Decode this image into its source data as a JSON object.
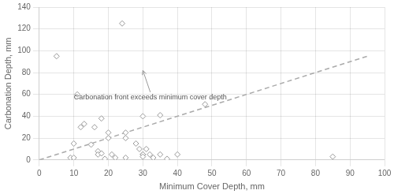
{
  "chart_data": {
    "type": "scatter",
    "xlabel": "Minimum Cover Depth, mm",
    "ylabel": "Carbonation Depth, mm",
    "xlim": [
      0,
      100
    ],
    "ylim": [
      0,
      140
    ],
    "xticks": [
      0,
      10,
      20,
      30,
      40,
      50,
      60,
      70,
      80,
      90,
      100
    ],
    "yticks": [
      0,
      20,
      40,
      60,
      80,
      100,
      120,
      140
    ],
    "grid": true,
    "series": [
      {
        "type": "line",
        "line_style": "dashed",
        "color": "#aaaaaa",
        "x": [
          0,
          95
        ],
        "values": [
          0,
          95
        ]
      },
      {
        "type": "scatter",
        "marker": "diamond",
        "color": "#999999",
        "x": [
          5,
          9,
          10,
          10,
          11,
          12,
          13,
          15,
          16,
          17,
          17,
          18,
          18,
          19,
          20,
          20,
          21,
          22,
          24,
          25,
          25,
          25,
          28,
          29,
          30,
          30,
          30,
          30,
          31,
          32,
          33,
          35,
          35,
          37,
          40,
          48,
          85
        ],
        "values": [
          95,
          2,
          15,
          2,
          60,
          30,
          33,
          14,
          30,
          8,
          5,
          38,
          6,
          1,
          25,
          20,
          5,
          2,
          125,
          25,
          20,
          2,
          15,
          10,
          5,
          5,
          40,
          3,
          10,
          5,
          2,
          41,
          5,
          1,
          5,
          51,
          3
        ]
      }
    ],
    "annotations": [
      {
        "text": "Carbonation front exceeds minimum cover depth",
        "xy": [
          30,
          82
        ],
        "xytext": [
          10,
          57
        ]
      }
    ]
  }
}
